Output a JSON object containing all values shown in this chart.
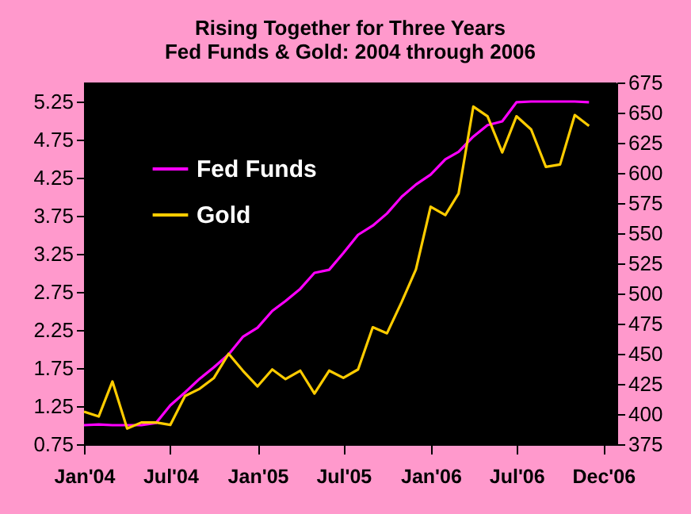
{
  "chart_data": {
    "type": "line",
    "title": "Rising Together for Three Years",
    "subtitle": "Fed Funds & Gold:  2004 through 2006",
    "x": [
      "2004-01",
      "2004-02",
      "2004-03",
      "2004-04",
      "2004-05",
      "2004-06",
      "2004-07",
      "2004-08",
      "2004-09",
      "2004-10",
      "2004-11",
      "2004-12",
      "2005-01",
      "2005-02",
      "2005-03",
      "2005-04",
      "2005-05",
      "2005-06",
      "2005-07",
      "2005-08",
      "2005-09",
      "2005-10",
      "2005-11",
      "2005-12",
      "2006-01",
      "2006-02",
      "2006-03",
      "2006-04",
      "2006-05",
      "2006-06",
      "2006-07",
      "2006-08",
      "2006-09",
      "2006-10",
      "2006-11",
      "2006-12"
    ],
    "series": [
      {
        "name": "Fed Funds",
        "color": "#ff00ff",
        "values": [
          1.0,
          1.01,
          1.0,
          1.0,
          1.0,
          1.03,
          1.26,
          1.43,
          1.61,
          1.76,
          1.93,
          2.16,
          2.28,
          2.5,
          2.63,
          2.79,
          3.0,
          3.04,
          3.26,
          3.5,
          3.62,
          3.78,
          4.0,
          4.16,
          4.29,
          4.49,
          4.59,
          4.79,
          4.94,
          4.99,
          5.24,
          5.25,
          5.25,
          5.25,
          5.25,
          5.24
        ]
      },
      {
        "name": "Gold",
        "color": "#ffcc00",
        "axis": "y2",
        "values": [
          402,
          398,
          427,
          388,
          393,
          393,
          391,
          415,
          421,
          430,
          450,
          436,
          423,
          437,
          429,
          436,
          417,
          436,
          430,
          437,
          472,
          467,
          493,
          520,
          572,
          565,
          583,
          655,
          647,
          617,
          647,
          636,
          605,
          607,
          648,
          639
        ]
      }
    ],
    "xlim": [
      "2004-01",
      "2007-01-28"
    ],
    "xticks": [
      {
        "value": "2004-01",
        "label": "Jan'04"
      },
      {
        "value": "2004-07",
        "label": "Jul'04"
      },
      {
        "value": "2005-01",
        "label": "Jan'05"
      },
      {
        "value": "2005-07",
        "label": "Jul'05"
      },
      {
        "value": "2006-01",
        "label": "Jan'06"
      },
      {
        "value": "2006-07",
        "label": "Jul'06"
      },
      {
        "value": "2006-12-31",
        "label": "Dec'06"
      }
    ],
    "ylim": [
      0.75,
      5.5
    ],
    "yticks": [
      0.75,
      1.25,
      1.75,
      2.25,
      2.75,
      3.25,
      3.75,
      4.25,
      4.75,
      5.25
    ],
    "y2lim": [
      375,
      675
    ],
    "y2ticks": [
      375,
      400,
      425,
      450,
      475,
      500,
      525,
      550,
      575,
      600,
      625,
      650,
      675
    ],
    "legend": "top left",
    "grid": false,
    "marker": "none",
    "line_style": "solid"
  }
}
